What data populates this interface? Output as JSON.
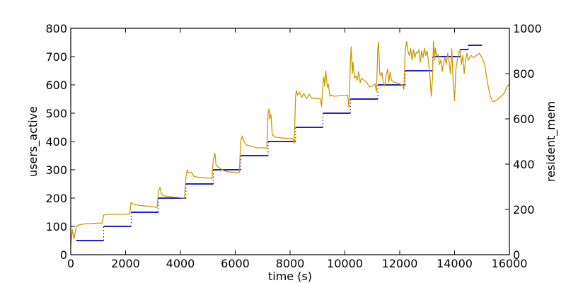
{
  "chart_data": {
    "type": "line",
    "xlabel": "time (s)",
    "ylabel_left": "users_active",
    "ylabel_right": "resident_mem",
    "xlim": [
      0,
      16000
    ],
    "ylim_left": [
      0,
      800
    ],
    "ylim_right": [
      0,
      1000
    ],
    "x_ticks": [
      "0",
      "2000",
      "4000",
      "6000",
      "8000",
      "10000",
      "12000",
      "14000",
      "16000"
    ],
    "y_left_ticks": [
      "0",
      "100",
      "200",
      "300",
      "400",
      "500",
      "600",
      "700",
      "800"
    ],
    "y_right_ticks": [
      "0",
      "200",
      "400",
      "600",
      "800",
      "1000"
    ],
    "grid": false,
    "series": [
      {
        "axis": "left",
        "color": "#0000cc",
        "style": "steps",
        "segments": [
          {
            "x0": 200,
            "x1": 1200,
            "y": 50
          },
          {
            "x0": 1200,
            "x1": 2200,
            "y": 100
          },
          {
            "x0": 2200,
            "x1": 3200,
            "y": 150
          },
          {
            "x0": 3200,
            "x1": 4200,
            "y": 200
          },
          {
            "x0": 4200,
            "x1": 5200,
            "y": 250
          },
          {
            "x0": 5200,
            "x1": 6200,
            "y": 300
          },
          {
            "x0": 6200,
            "x1": 7200,
            "y": 350
          },
          {
            "x0": 7200,
            "x1": 8200,
            "y": 400
          },
          {
            "x0": 8200,
            "x1": 9200,
            "y": 450
          },
          {
            "x0": 9200,
            "x1": 10200,
            "y": 500
          },
          {
            "x0": 10200,
            "x1": 11200,
            "y": 550
          },
          {
            "x0": 11200,
            "x1": 12200,
            "y": 600
          },
          {
            "x0": 12200,
            "x1": 13200,
            "y": 650
          },
          {
            "x0": 13200,
            "x1": 14200,
            "y": 700
          },
          {
            "x0": 14200,
            "x1": 14500,
            "y": 725
          },
          {
            "x0": 14500,
            "x1": 15000,
            "y": 740
          }
        ]
      },
      {
        "axis": "right",
        "color": "#cc9900",
        "style": "line",
        "points": [
          [
            0,
            40
          ],
          [
            60,
            110
          ],
          [
            120,
            70
          ],
          [
            200,
            125
          ],
          [
            300,
            132
          ],
          [
            500,
            136
          ],
          [
            800,
            138
          ],
          [
            1150,
            140
          ],
          [
            1200,
            175
          ],
          [
            1300,
            177
          ],
          [
            1500,
            178
          ],
          [
            1800,
            178
          ],
          [
            2150,
            180
          ],
          [
            2200,
            232
          ],
          [
            2250,
            225
          ],
          [
            2400,
            220
          ],
          [
            2700,
            215
          ],
          [
            3000,
            212
          ],
          [
            3150,
            208
          ],
          [
            3200,
            280
          ],
          [
            3260,
            298
          ],
          [
            3300,
            270
          ],
          [
            3400,
            260
          ],
          [
            3700,
            255
          ],
          [
            4000,
            252
          ],
          [
            4150,
            250
          ],
          [
            4200,
            345
          ],
          [
            4250,
            375
          ],
          [
            4300,
            360
          ],
          [
            4400,
            365
          ],
          [
            4500,
            345
          ],
          [
            4800,
            340
          ],
          [
            5100,
            338
          ],
          [
            5150,
            336
          ],
          [
            5200,
            420
          ],
          [
            5260,
            448
          ],
          [
            5300,
            395
          ],
          [
            5400,
            385
          ],
          [
            5600,
            370
          ],
          [
            5800,
            365
          ],
          [
            6100,
            362
          ],
          [
            6150,
            365
          ],
          [
            6200,
            505
          ],
          [
            6260,
            525
          ],
          [
            6300,
            505
          ],
          [
            6400,
            485
          ],
          [
            6600,
            478
          ],
          [
            6800,
            472
          ],
          [
            7100,
            472
          ],
          [
            7150,
            468
          ],
          [
            7200,
            625
          ],
          [
            7230,
            645
          ],
          [
            7260,
            600
          ],
          [
            7300,
            620
          ],
          [
            7350,
            530
          ],
          [
            7450,
            520
          ],
          [
            7700,
            515
          ],
          [
            8100,
            512
          ],
          [
            8150,
            492
          ],
          [
            8200,
            700
          ],
          [
            8230,
            725
          ],
          [
            8280,
            705
          ],
          [
            8350,
            718
          ],
          [
            8420,
            695
          ],
          [
            8500,
            712
          ],
          [
            8600,
            690
          ],
          [
            8700,
            708
          ],
          [
            8800,
            690
          ],
          [
            8900,
            692
          ],
          [
            9000,
            688
          ],
          [
            9100,
            690
          ],
          [
            9150,
            655
          ],
          [
            9200,
            760
          ],
          [
            9230,
            785
          ],
          [
            9260,
            745
          ],
          [
            9300,
            812
          ],
          [
            9360,
            740
          ],
          [
            9400,
            752
          ],
          [
            9450,
            700
          ],
          [
            9500,
            705
          ],
          [
            9600,
            700
          ],
          [
            9800,
            702
          ],
          [
            10100,
            705
          ],
          [
            10150,
            650
          ],
          [
            10200,
            860
          ],
          [
            10230,
            918
          ],
          [
            10270,
            800
          ],
          [
            10300,
            850
          ],
          [
            10350,
            780
          ],
          [
            10400,
            790
          ],
          [
            10450,
            770
          ],
          [
            10500,
            808
          ],
          [
            10560,
            760
          ],
          [
            10600,
            780
          ],
          [
            10700,
            770
          ],
          [
            10800,
            760
          ],
          [
            10900,
            740
          ],
          [
            11000,
            745
          ],
          [
            11100,
            755
          ],
          [
            11150,
            720
          ],
          [
            11200,
            912
          ],
          [
            11230,
            940
          ],
          [
            11270,
            800
          ],
          [
            11300,
            790
          ],
          [
            11350,
            805
          ],
          [
            11400,
            760
          ],
          [
            11450,
            745
          ],
          [
            11500,
            790
          ],
          [
            11560,
            820
          ],
          [
            11600,
            760
          ],
          [
            11650,
            805
          ],
          [
            11700,
            770
          ],
          [
            11800,
            762
          ],
          [
            11900,
            758
          ],
          [
            12100,
            750
          ],
          [
            12150,
            730
          ],
          [
            12200,
            902
          ],
          [
            12250,
            942
          ],
          [
            12300,
            900
          ],
          [
            12350,
            880
          ],
          [
            12400,
            912
          ],
          [
            12450,
            860
          ],
          [
            12500,
            905
          ],
          [
            12550,
            870
          ],
          [
            12600,
            895
          ],
          [
            12650,
            890
          ],
          [
            12700,
            905
          ],
          [
            12750,
            850
          ],
          [
            12800,
            900
          ],
          [
            12850,
            870
          ],
          [
            12900,
            912
          ],
          [
            12950,
            880
          ],
          [
            13000,
            900
          ],
          [
            13050,
            850
          ],
          [
            13100,
            790
          ],
          [
            13150,
            700
          ],
          [
            13200,
            790
          ],
          [
            13230,
            942
          ],
          [
            13280,
            860
          ],
          [
            13300,
            912
          ],
          [
            13350,
            880
          ],
          [
            13400,
            885
          ],
          [
            13450,
            840
          ],
          [
            13500,
            860
          ],
          [
            13550,
            810
          ],
          [
            13600,
            850
          ],
          [
            13650,
            870
          ],
          [
            13700,
            840
          ],
          [
            13750,
            890
          ],
          [
            13800,
            850
          ],
          [
            13850,
            800
          ],
          [
            13900,
            910
          ],
          [
            13950,
            760
          ],
          [
            14000,
            680
          ],
          [
            14050,
            820
          ],
          [
            14100,
            860
          ],
          [
            14150,
            890
          ],
          [
            14200,
            905
          ],
          [
            14250,
            840
          ],
          [
            14300,
            880
          ],
          [
            14350,
            800
          ],
          [
            14400,
            860
          ],
          [
            14450,
            890
          ],
          [
            14500,
            860
          ],
          [
            14600,
            880
          ],
          [
            14700,
            870
          ],
          [
            14800,
            880
          ],
          [
            14900,
            890
          ],
          [
            15000,
            870
          ],
          [
            15100,
            840
          ],
          [
            15200,
            760
          ],
          [
            15300,
            700
          ],
          [
            15400,
            675
          ],
          [
            15500,
            680
          ],
          [
            15600,
            690
          ],
          [
            15700,
            700
          ],
          [
            15800,
            712
          ],
          [
            15900,
            738
          ],
          [
            16000,
            755
          ]
        ]
      }
    ]
  }
}
